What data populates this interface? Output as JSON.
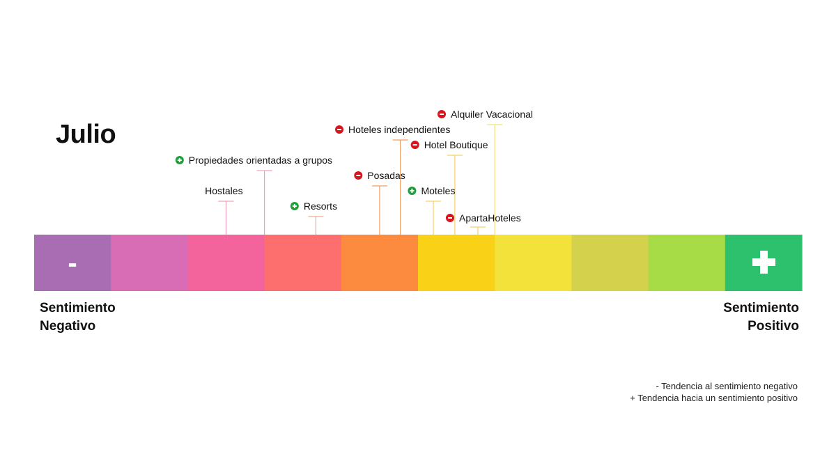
{
  "title": "Julio",
  "scale": {
    "negative_symbol": "-",
    "positive_symbol": "+",
    "negative_label_line1": "Sentimiento",
    "negative_label_line2": "Negativo",
    "positive_label_line1": "Sentimiento",
    "positive_label_line2": "Positivo"
  },
  "legend": {
    "negative": "- Tendencia al sentimiento negativo",
    "positive": "+ Tendencia hacia un sentimiento positivo"
  },
  "chart_data": {
    "type": "scatter",
    "title": "Julio",
    "x_range": [
      0,
      10
    ],
    "segments": [
      {
        "color": "#a96db3"
      },
      {
        "color": "#d96db5"
      },
      {
        "color": "#f2649b"
      },
      {
        "color": "#fd6f6e"
      },
      {
        "color": "#fc8a3f"
      },
      {
        "color": "#f9d116"
      },
      {
        "color": "#f3e23a"
      },
      {
        "color": "#d4d24c"
      },
      {
        "color": "#a7dc46"
      },
      {
        "color": "#2dc06d"
      }
    ],
    "items": [
      {
        "label": "Hostales",
        "x": 2.5,
        "trend": "none",
        "level": 1,
        "stem_color": "#f2a0b8"
      },
      {
        "label": "Propiedades orientadas a grupos",
        "x": 3.0,
        "trend": "positive",
        "level": 3,
        "stem_color": "#f2a0b8"
      },
      {
        "label": "Resorts",
        "x": 3.67,
        "trend": "positive",
        "level": 0,
        "stem_color": "#f4a88f"
      },
      {
        "label": "Posadas",
        "x": 4.5,
        "trend": "negative",
        "level": 2,
        "stem_color": "#f0a060"
      },
      {
        "label": "Hoteles independientes",
        "x": 4.77,
        "trend": "negative",
        "level": 5,
        "stem_color": "#f0a060"
      },
      {
        "label": "Moteles",
        "x": 5.2,
        "trend": "positive",
        "level": 1,
        "stem_color": "#f5d26a"
      },
      {
        "label": "Hotel Boutique",
        "x": 5.48,
        "trend": "negative",
        "level": 4,
        "stem_color": "#f5d26a"
      },
      {
        "label": "ApartaHoteles",
        "x": 5.78,
        "trend": "negative",
        "level": -1,
        "stem_color": "#f5d26a"
      },
      {
        "label": "Alquiler Vacacional",
        "x": 6.0,
        "trend": "negative",
        "level": 6,
        "stem_color": "#f5e27a"
      }
    ],
    "trend_colors": {
      "negative": "#d7151d",
      "positive": "#1f9e3a"
    }
  }
}
